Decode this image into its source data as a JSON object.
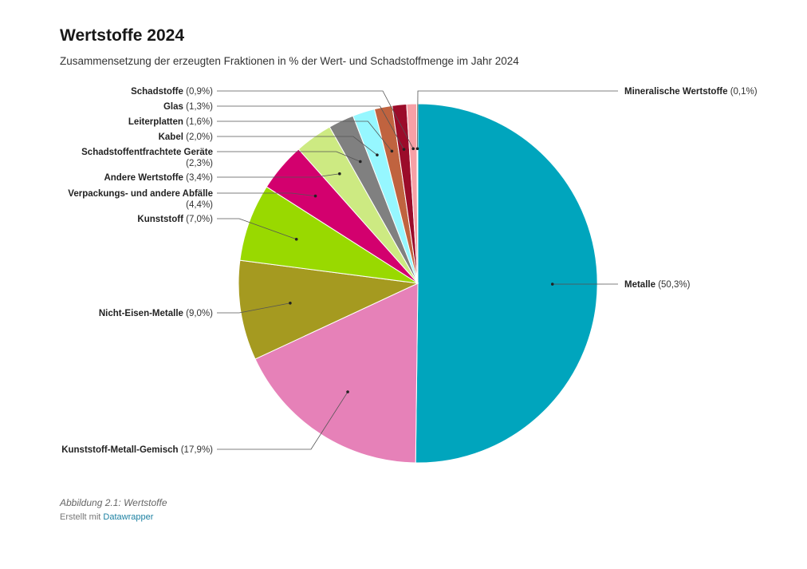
{
  "header": {
    "title": "Wertstoffe 2024",
    "subtitle": "Zusammensetzung der erzeugten Fraktionen in % der Wert- und Schadstoffmenge im Jahr 2024"
  },
  "footer": {
    "note": "Abbildung 2.1: Wertstoffe",
    "credit_prefix": "Erstellt mit",
    "credit_link": "Datawrapper"
  },
  "chart_data": {
    "type": "pie",
    "title": "Wertstoffe 2024",
    "subtitle": "Zusammensetzung der erzeugten Fraktionen in % der Wert- und Schadstoffmenge im Jahr 2024",
    "slices": [
      {
        "label": "Metalle",
        "value_label": "(50,3%)",
        "value": 50.3,
        "color": "#00a5bd"
      },
      {
        "label": "Kunststoff-Metall-Gemisch",
        "value_label": "(17,9%)",
        "value": 17.9,
        "color": "#e681b8"
      },
      {
        "label": "Nicht-Eisen-Metalle",
        "value_label": "(9,0%)",
        "value": 9.0,
        "color": "#a59a20"
      },
      {
        "label": "Kunststoff",
        "value_label": "(7,0%)",
        "value": 7.0,
        "color": "#99d900"
      },
      {
        "label": "Verpackungs- und andere Abfälle",
        "value_label": "(4,4%)",
        "value": 4.4,
        "color": "#d3006e"
      },
      {
        "label": "Andere Wertstoffe",
        "value_label": "(3,4%)",
        "value": 3.4,
        "color": "#cdea82"
      },
      {
        "label": "Schadstoffentfrachtete Geräte",
        "value_label": "(2,3%)",
        "value": 2.3,
        "color": "#808080"
      },
      {
        "label": "Kabel",
        "value_label": "(2,0%)",
        "value": 2.0,
        "color": "#96f7ff"
      },
      {
        "label": "Leiterplatten",
        "value_label": "(1,6%)",
        "value": 1.6,
        "color": "#c0633f"
      },
      {
        "label": "Glas",
        "value_label": "(1,3%)",
        "value": 1.3,
        "color": "#9b0c2a"
      },
      {
        "label": "Schadstoffe",
        "value_label": "(0,9%)",
        "value": 0.9,
        "color": "#f7a0a6"
      },
      {
        "label": "Mineralische Wertstoffe",
        "value_label": "(0,1%)",
        "value": 0.1,
        "color": "#ffc199"
      }
    ]
  }
}
